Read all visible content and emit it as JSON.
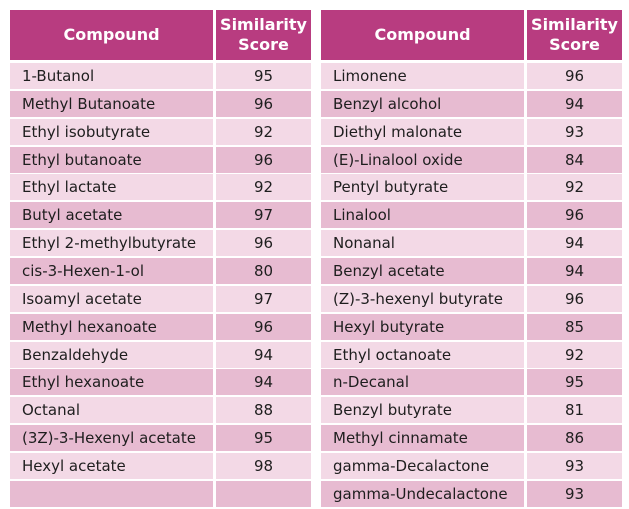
{
  "tables": [
    {
      "header": [
        "Compound",
        "Similarity Score"
      ],
      "rows": [
        [
          "1-Butanol",
          95
        ],
        [
          "Methyl Butanoate",
          96
        ],
        [
          "Ethyl isobutyrate",
          92
        ],
        [
          "Ethyl butanoate",
          96
        ],
        [
          "Ethyl lactate",
          92
        ],
        [
          "Butyl acetate",
          97
        ],
        [
          "Ethyl 2-methylbutyrate",
          96
        ],
        [
          "cis-3-Hexen-1-ol",
          80
        ],
        [
          "Isoamyl acetate",
          97
        ],
        [
          "Methyl hexanoate",
          96
        ],
        [
          "Benzaldehyde",
          94
        ],
        [
          "Ethyl hexanoate",
          94
        ],
        [
          "Octanal",
          88
        ],
        [
          "(3Z)-3-Hexenyl acetate",
          95
        ],
        [
          "Hexyl acetate",
          98
        ]
      ]
    },
    {
      "header": [
        "Compound",
        "Similarity Score"
      ],
      "rows": [
        [
          "Limonene",
          96
        ],
        [
          "Benzyl alcohol",
          94
        ],
        [
          "Diethyl malonate",
          93
        ],
        [
          "(E)-Linalool oxide",
          84
        ],
        [
          "Pentyl butyrate",
          92
        ],
        [
          "Linalool",
          96
        ],
        [
          "Nonanal",
          94
        ],
        [
          "Benzyl acetate",
          94
        ],
        [
          "(Z)-3-hexenyl butyrate",
          96
        ],
        [
          "Hexyl butyrate",
          85
        ],
        [
          "Ethyl octanoate",
          92
        ],
        [
          "n-Decanal",
          95
        ],
        [
          "Benzyl butyrate",
          81
        ],
        [
          "Methyl cinnamate",
          86
        ],
        [
          "gamma-Decalactone",
          93
        ],
        [
          "gamma-Undecalactone",
          93
        ]
      ]
    }
  ]
}
